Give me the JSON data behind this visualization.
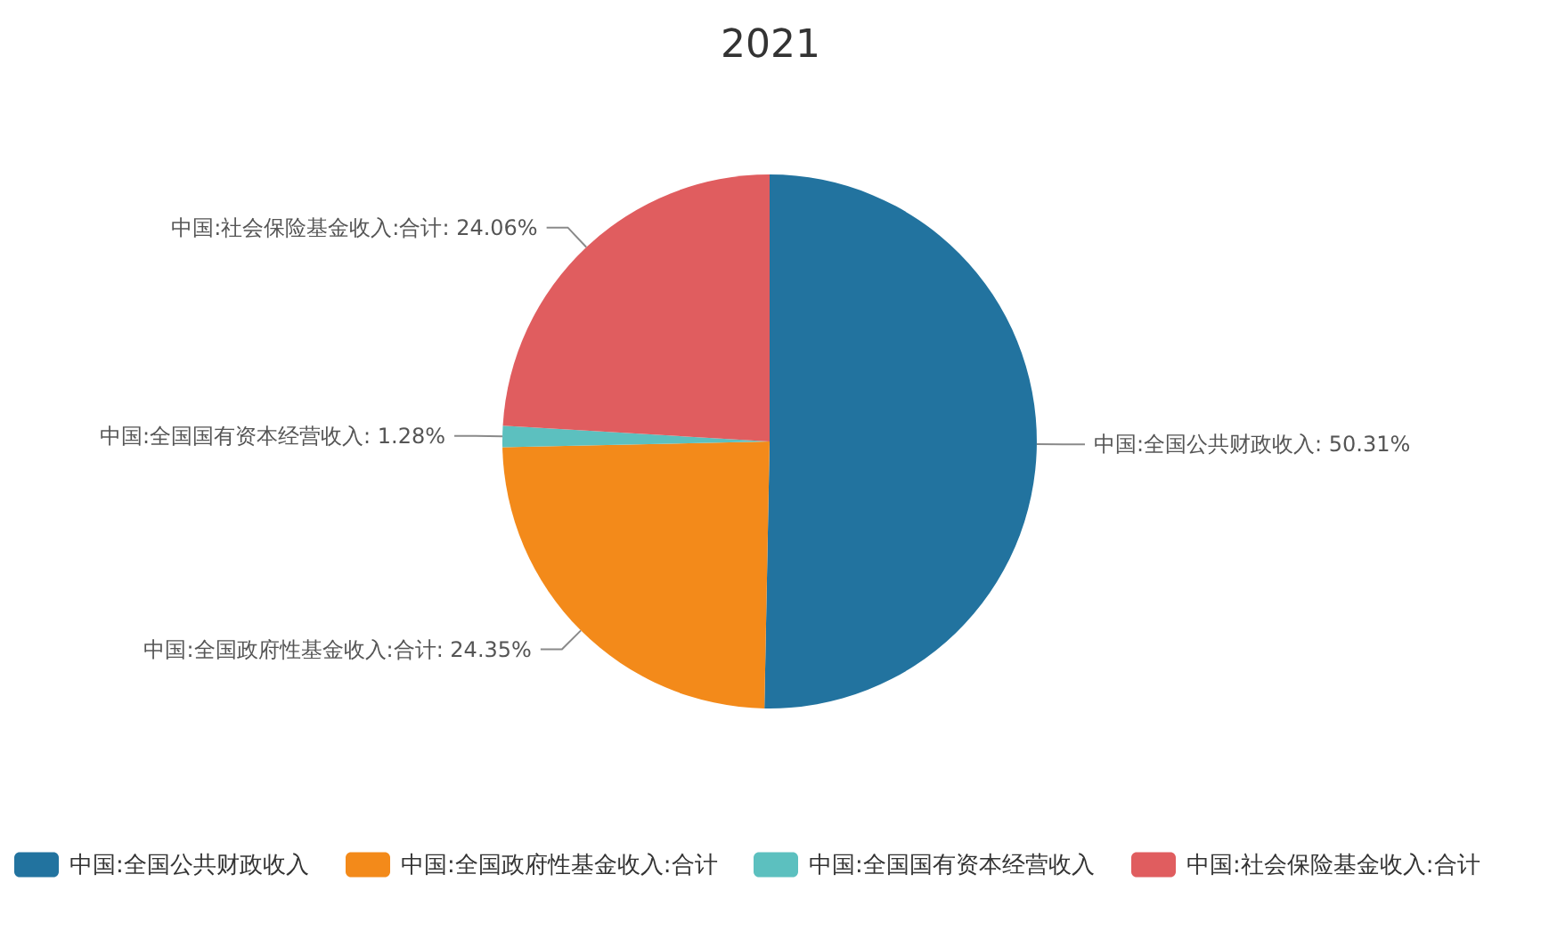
{
  "chart_data": {
    "type": "pie",
    "title": "2021",
    "categories": [
      "中国:全国公共财政收入",
      "中国:全国政府性基金收入:合计",
      "中国:全国国有资本经营收入",
      "中国:社会保险基金收入:合计"
    ],
    "values": [
      50.31,
      24.35,
      1.28,
      24.06
    ],
    "colors": [
      "#22739f",
      "#f38a1a",
      "#5cc0bf",
      "#e05d5f"
    ],
    "value_labels": [
      "中国:全国公共财政收入: 50.31%",
      "中国:全国政府性基金收入:合计: 24.35%",
      "中国:全国国有资本经营收入: 1.28%",
      "中国:社会保险基金收入:合计: 24.06%"
    ],
    "legend": "bottom"
  }
}
